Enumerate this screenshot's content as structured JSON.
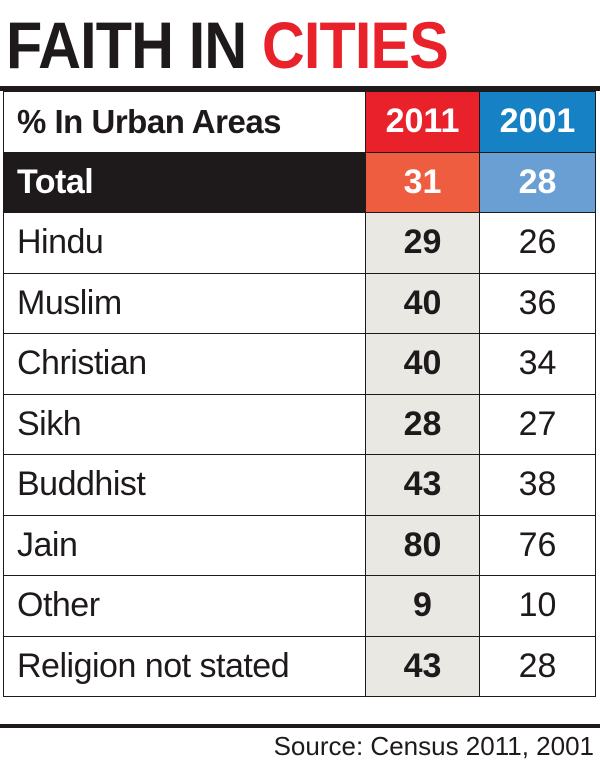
{
  "title": {
    "part1": "FAITH IN",
    "part2": "CITIES"
  },
  "colors": {
    "accent_red": "#e8212b",
    "accent_blue": "#1682c5",
    "total_2011_bg": "#ee5d3f",
    "total_2001_bg": "#6a9fd4",
    "text_dark": "#1e1a1b",
    "highlight_column_bg": "#e9e8e3"
  },
  "header": {
    "label": "% In Urban Areas",
    "col_2011": "2011",
    "col_2001": "2001"
  },
  "total": {
    "label": "Total",
    "v2011": "31",
    "v2001": "28"
  },
  "rows": [
    {
      "label": "Hindu",
      "v2011": "29",
      "v2001": "26"
    },
    {
      "label": "Muslim",
      "v2011": "40",
      "v2001": "36"
    },
    {
      "label": "Christian",
      "v2011": "40",
      "v2001": "34"
    },
    {
      "label": "Sikh",
      "v2011": "28",
      "v2001": "27"
    },
    {
      "label": "Buddhist",
      "v2011": "43",
      "v2001": "38"
    },
    {
      "label": "Jain",
      "v2011": "80",
      "v2001": "76"
    },
    {
      "label": "Other",
      "v2011": "9",
      "v2001": "10"
    },
    {
      "label": "Religion not stated",
      "v2011": "43",
      "v2001": "28"
    }
  ],
  "source": "Source: Census 2011, 2001",
  "chart_data": {
    "type": "table",
    "title": "FAITH IN CITIES",
    "columns": [
      "% In Urban Areas",
      "2011",
      "2001"
    ],
    "categories": [
      "Total",
      "Hindu",
      "Muslim",
      "Christian",
      "Sikh",
      "Buddhist",
      "Jain",
      "Other",
      "Religion not stated"
    ],
    "series": [
      {
        "name": "2011",
        "values": [
          31,
          29,
          40,
          40,
          28,
          43,
          80,
          9,
          43
        ]
      },
      {
        "name": "2001",
        "values": [
          28,
          26,
          36,
          34,
          27,
          38,
          76,
          10,
          28
        ]
      }
    ],
    "source": "Source: Census 2011, 2001"
  }
}
